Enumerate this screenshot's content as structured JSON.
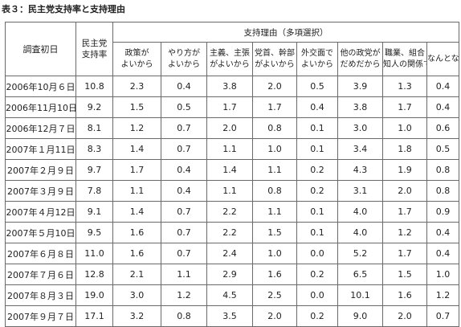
{
  "title": "表３：民主党支持率と支持理由",
  "header": {
    "date": "調査初日",
    "rate": "民主党支持率",
    "reasons": "支持理由（多項選択）",
    "sub": [
      "政策がよいから",
      "やり方がよいから",
      "主義、主張がよいから",
      "党首、幹部がよいから",
      "外交面でよいから",
      "他の政党がだめだから",
      "職業、組合知人の関係で",
      "なんとなく"
    ]
  },
  "rows": [
    {
      "date": "2006年10月６日",
      "rate": "10.8",
      "values": [
        "2.3",
        "0.4",
        "3.8",
        "2.0",
        "0.5",
        "3.9",
        "1.3",
        "0.4"
      ]
    },
    {
      "date": "2006年11月10日",
      "rate": "9.2",
      "values": [
        "1.5",
        "0.5",
        "1.7",
        "1.7",
        "0.4",
        "3.8",
        "1.7",
        "0.4"
      ]
    },
    {
      "date": "2006年12月７日",
      "rate": "8.1",
      "values": [
        "1.2",
        "0.7",
        "2.0",
        "0.8",
        "0.1",
        "3.0",
        "1.0",
        "0.6"
      ]
    },
    {
      "date": "2007年１月11日",
      "rate": "8.3",
      "values": [
        "1.4",
        "0.7",
        "1.1",
        "1.0",
        "0.1",
        "3.4",
        "1.8",
        "0.5"
      ]
    },
    {
      "date": "2007年２月９日",
      "rate": "9.7",
      "values": [
        "1.7",
        "0.4",
        "1.4",
        "1.1",
        "0.2",
        "4.3",
        "1.9",
        "0.8"
      ]
    },
    {
      "date": "2007年３月９日",
      "rate": "7.8",
      "values": [
        "1.1",
        "0.4",
        "1.1",
        "0.8",
        "0.2",
        "3.1",
        "2.0",
        "0.8"
      ]
    },
    {
      "date": "2007年４月12日",
      "rate": "9.1",
      "values": [
        "1.4",
        "0.7",
        "2.2",
        "1.1",
        "0.1",
        "4.0",
        "1.7",
        "0.9"
      ]
    },
    {
      "date": "2007年５月10日",
      "rate": "9.5",
      "values": [
        "1.6",
        "0.7",
        "2.2",
        "1.5",
        "0.1",
        "4.0",
        "1.2",
        "0.4"
      ]
    },
    {
      "date": "2007年６月８日",
      "rate": "11.0",
      "values": [
        "1.6",
        "0.7",
        "2.4",
        "1.0",
        "0.0",
        "5.2",
        "1.7",
        "0.4"
      ]
    },
    {
      "date": "2007年７月６日",
      "rate": "12.8",
      "values": [
        "2.1",
        "1.1",
        "2.9",
        "1.6",
        "0.2",
        "6.5",
        "1.5",
        "1.0"
      ]
    },
    {
      "date": "2007年８月３日",
      "rate": "19.0",
      "values": [
        "3.0",
        "1.2",
        "4.5",
        "2.5",
        "0.0",
        "10.1",
        "1.6",
        "1.2"
      ]
    },
    {
      "date": "2007年９月７日",
      "rate": "17.1",
      "values": [
        "3.2",
        "0.8",
        "3.5",
        "2.0",
        "0.2",
        "9.0",
        "2.0",
        "0.7"
      ]
    }
  ]
}
